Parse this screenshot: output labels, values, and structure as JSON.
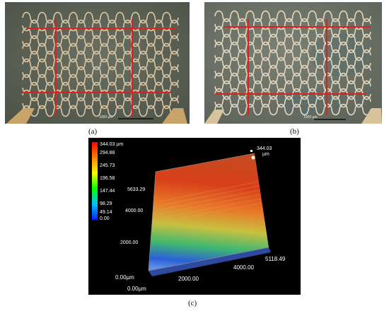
{
  "figure": {
    "captions": {
      "a": "(a)",
      "b": "(b)",
      "c": "(c)"
    },
    "panel_a": {
      "scale_bar_label": "1000 µm",
      "background": "#5e6356",
      "trace_color": "#d8c6a4",
      "line_color": "#e02020"
    },
    "panel_b": {
      "scale_bar_label": "1000 µm",
      "background": "#6e7468",
      "trace_color": "#e3d7bf",
      "line_color": "#e02020"
    },
    "panel_c": {
      "colorbar": {
        "top_label": "344.03 µm",
        "ticks": [
          "294.88",
          "245.73",
          "196.58",
          "147.44",
          "98.29",
          "49.14",
          "0.00"
        ]
      },
      "peak_label": "344.03",
      "peak_unit": "µm",
      "axis_labels": {
        "y_max": "5633.29",
        "y_4000": "4000.00",
        "y_2000": "2000.00",
        "y_origin": "0.00µm",
        "x_origin": "0.00µm",
        "x_2000": "2000.00",
        "x_4000": "4000.00",
        "x_max": "5118.49"
      }
    }
  }
}
